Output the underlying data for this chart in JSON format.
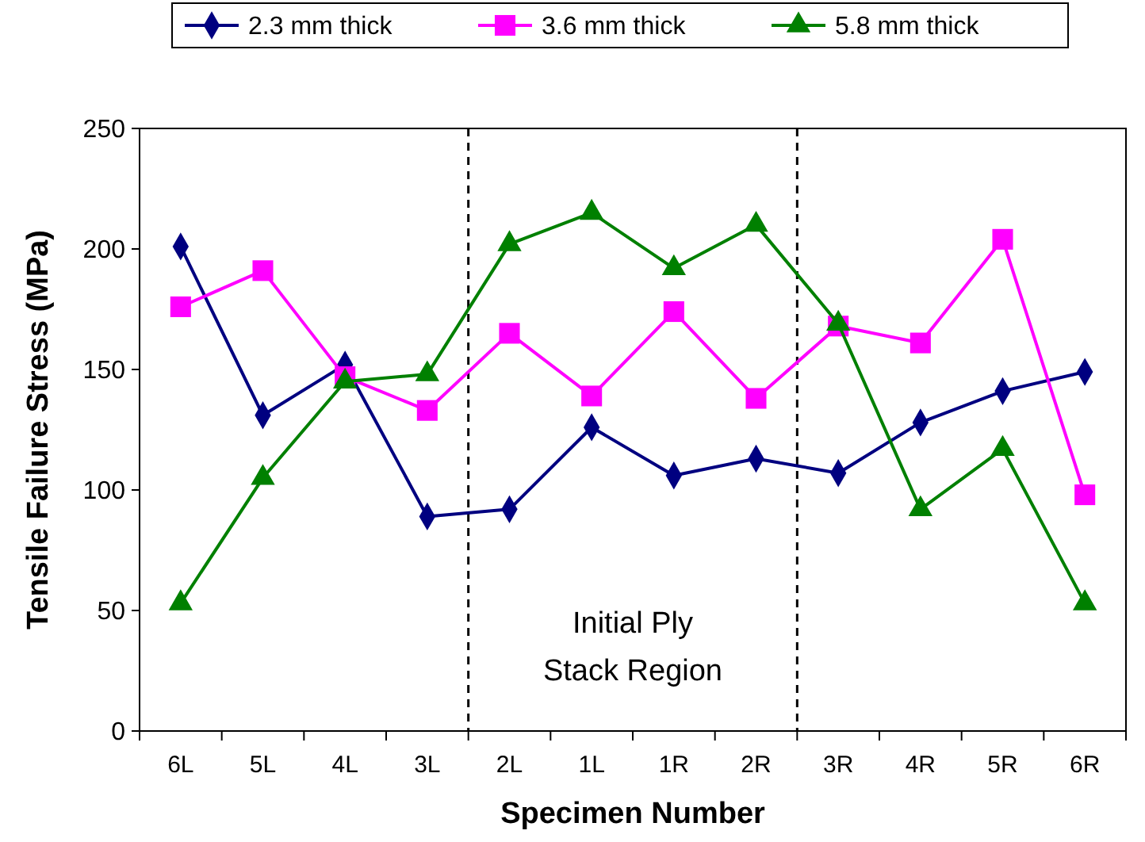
{
  "chart_data": {
    "type": "line",
    "xlabel": "Specimen  Number",
    "ylabel": "Tensile Failure Stress (MPa)",
    "categories": [
      "6L",
      "5L",
      "4L",
      "3L",
      "2L",
      "1L",
      "1R",
      "2R",
      "3R",
      "4R",
      "5R",
      "6R"
    ],
    "series": [
      {
        "name": "2.3 mm thick",
        "color": "#000080",
        "marker": "diamond",
        "values": [
          201,
          131,
          152,
          89,
          92,
          126,
          106,
          113,
          107,
          128,
          141,
          149
        ]
      },
      {
        "name": "3.6 mm thick",
        "color": "#ff00ff",
        "marker": "square",
        "values": [
          176,
          191,
          147,
          133,
          165,
          139,
          174,
          138,
          168,
          161,
          204,
          98
        ]
      },
      {
        "name": "5.8 mm thick",
        "color": "#008000",
        "marker": "triangle",
        "values": [
          53,
          105,
          145,
          148,
          202,
          215,
          192,
          210,
          169,
          92,
          117,
          53
        ]
      }
    ],
    "ylim": [
      0,
      250
    ],
    "yticks": [
      0,
      50,
      100,
      150,
      200,
      250
    ],
    "grid": false,
    "legend": "top",
    "line_style": "solid",
    "annotations": [
      "Initial Ply\nStack Region"
    ]
  }
}
